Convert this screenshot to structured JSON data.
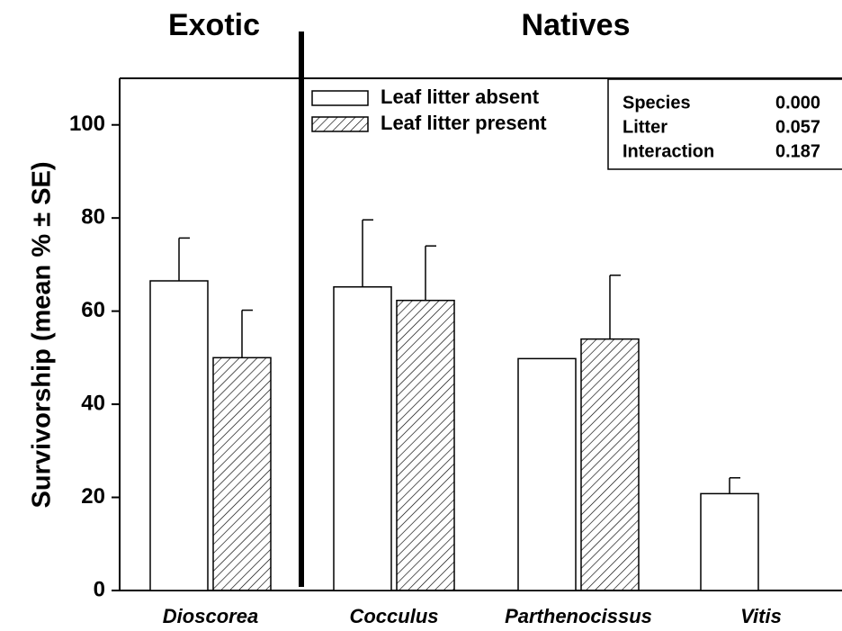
{
  "chart_data": {
    "type": "bar",
    "headers": [
      "Exotic",
      "Natives"
    ],
    "ylabel": "Survivorship (mean % ± SE)",
    "categories": [
      "Dioscorea",
      "Cocculus",
      "Parthenocissus",
      "Vitis"
    ],
    "series": [
      {
        "name": "Leaf litter absent",
        "color": "#ffffff",
        "hatch": false,
        "values": [
          66.5,
          65.2,
          49.8,
          20.8
        ],
        "errors": [
          9.2,
          14.4,
          null,
          3.4
        ]
      },
      {
        "name": "Leaf litter present",
        "color": "#ffffff",
        "hatch": true,
        "values": [
          50,
          62.3,
          54,
          null
        ],
        "errors": [
          10.2,
          11.7,
          13.7,
          null
        ]
      }
    ],
    "stats": [
      [
        "Species",
        "0.000"
      ],
      [
        "Litter",
        "0.057"
      ],
      [
        "Interaction",
        "0.187"
      ]
    ],
    "ylim": [
      0,
      110
    ],
    "yticks": [
      0,
      20,
      40,
      60,
      80,
      100
    ],
    "legend": "top"
  }
}
